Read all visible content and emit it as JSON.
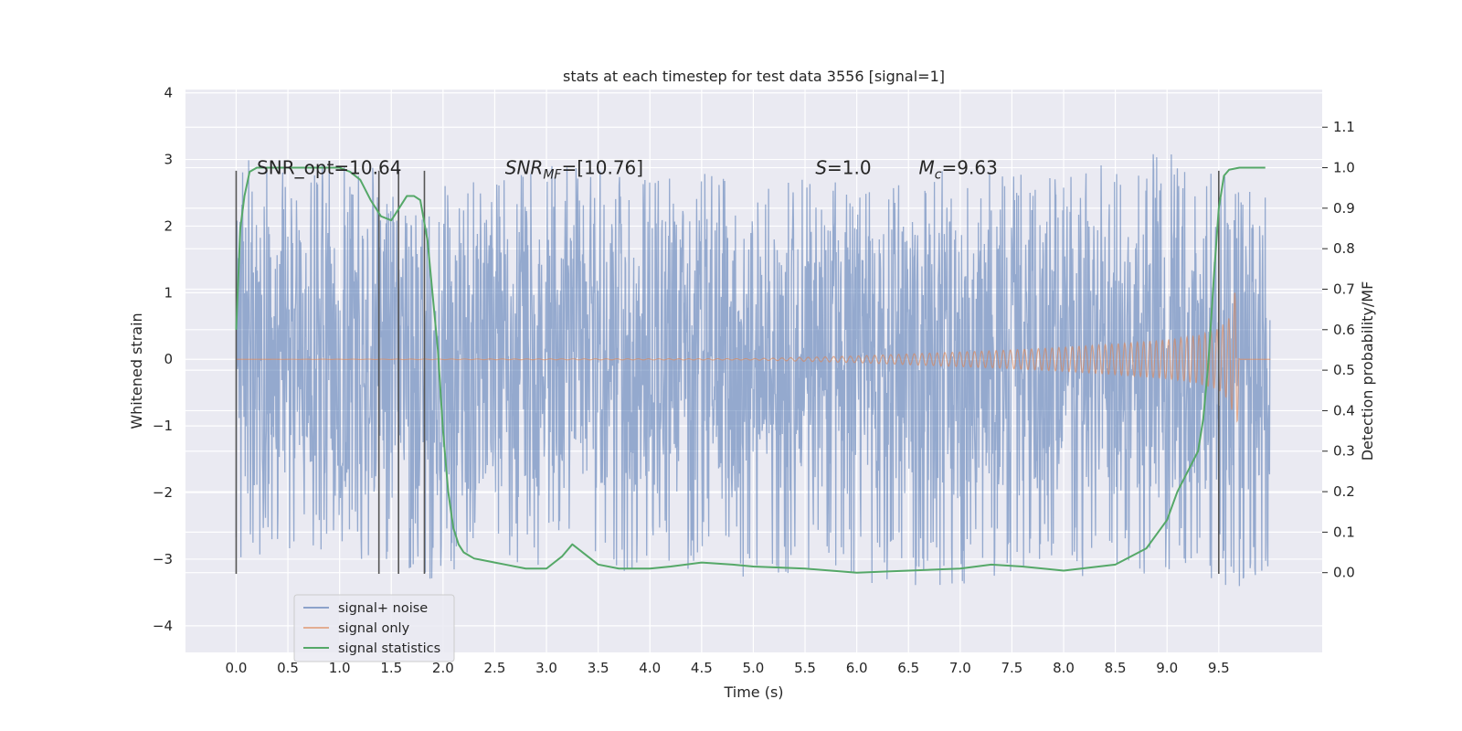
{
  "chart_data": {
    "type": "line",
    "title": "stats at each timestep for test data 3556 [signal=1]",
    "xlabel": "Time (s)",
    "ylabel": "Whitened strain",
    "y2label": "Detection probability/MF",
    "xlim": [
      -0.49,
      10.5
    ],
    "ylim": [
      -4.4,
      4.05
    ],
    "y2lim": [
      -0.197,
      1.193
    ],
    "x_ticks": [
      0.0,
      0.5,
      1.0,
      1.5,
      2.0,
      2.5,
      3.0,
      3.5,
      4.0,
      4.5,
      5.0,
      5.5,
      6.0,
      6.5,
      7.0,
      7.5,
      8.0,
      8.5,
      9.0,
      9.5
    ],
    "x_tick_labels": [
      "0.0",
      "0.5",
      "1.0",
      "1.5",
      "2.0",
      "2.5",
      "3.0",
      "3.5",
      "4.0",
      "4.5",
      "5.0",
      "5.5",
      "6.0",
      "6.5",
      "7.0",
      "7.5",
      "8.0",
      "8.5",
      "9.0",
      "9.5"
    ],
    "y_ticks": [
      -4,
      -3,
      -2,
      -1,
      0,
      1,
      2,
      3,
      4
    ],
    "y_tick_labels": [
      "−4",
      "−3",
      "−2",
      "−1",
      "0",
      "1",
      "2",
      "3",
      "4"
    ],
    "y2_ticks": [
      0.0,
      0.1,
      0.2,
      0.3,
      0.4,
      0.5,
      0.6,
      0.7,
      0.8,
      0.9,
      1.0,
      1.1
    ],
    "y2_tick_labels": [
      "0.0",
      "0.1",
      "0.2",
      "0.3",
      "0.4",
      "0.5",
      "0.6",
      "0.7",
      "0.8",
      "0.9",
      "1.0",
      "1.1"
    ],
    "grid": true,
    "legend_position": "lower-left",
    "annotations": [
      {
        "x": 0.2,
        "y": 2.85,
        "text": "SNR_opt=10.64"
      },
      {
        "x": 2.6,
        "y": 2.85,
        "text": "SNR_MF=[10.76]",
        "base": "SNR",
        "sub": "MF",
        "tail": "=[10.76]"
      },
      {
        "x": 5.6,
        "y": 2.85,
        "text": "S=1.0",
        "base": "S",
        "tail": "=1.0"
      },
      {
        "x": 6.6,
        "y": 2.85,
        "text": "M_c=9.63",
        "base": "M",
        "sub": "c",
        "tail": "=9.63"
      }
    ],
    "vertical_lines": {
      "x": [
        0.0,
        1.38,
        1.57,
        1.82,
        9.5
      ],
      "ymin": -3.22,
      "ymax": 2.83,
      "color": "#555555"
    },
    "series": [
      {
        "name": "signal+ noise",
        "color": "#4c72b0",
        "axis": "left",
        "x_range": [
          0.0,
          9.995
        ],
        "envelope": {
          "t": [
            0.0,
            0.5,
            1.0,
            1.5,
            2.0,
            2.5,
            3.0,
            3.5,
            4.0,
            4.5,
            5.0,
            5.5,
            6.0,
            6.5,
            7.0,
            7.5,
            8.0,
            8.5,
            9.0,
            9.5,
            10.0
          ],
          "upper": [
            3.0,
            3.0,
            2.9,
            2.9,
            2.6,
            2.7,
            2.9,
            2.9,
            2.7,
            2.8,
            2.7,
            2.8,
            2.8,
            2.8,
            2.9,
            2.8,
            2.7,
            3.0,
            3.2,
            2.9,
            2.4
          ],
          "lower": [
            -3.0,
            -3.0,
            -3.0,
            -3.0,
            -3.4,
            -3.1,
            -3.1,
            -3.2,
            -3.2,
            -3.2,
            -3.3,
            -3.2,
            -3.4,
            -3.4,
            -3.4,
            -3.2,
            -3.3,
            -3.3,
            -3.3,
            -3.4,
            -3.6
          ]
        }
      },
      {
        "name": "signal only",
        "color": "#dd8452",
        "axis": "left",
        "amplitude": {
          "t": [
            0.0,
            5.0,
            6.0,
            6.5,
            7.0,
            7.5,
            8.0,
            8.5,
            9.0,
            9.3,
            9.5,
            9.6,
            9.65,
            9.67,
            9.7,
            10.0
          ],
          "a": [
            0.0,
            0.01,
            0.05,
            0.08,
            0.11,
            0.14,
            0.18,
            0.23,
            0.29,
            0.36,
            0.46,
            0.62,
            0.9,
            1.4,
            0.0,
            0.0
          ]
        }
      },
      {
        "name": "signal statistics",
        "color": "#55a868",
        "axis": "right",
        "x": [
          0.0,
          0.04,
          0.08,
          0.13,
          0.2,
          0.3,
          0.5,
          0.8,
          1.0,
          1.1,
          1.2,
          1.3,
          1.4,
          1.5,
          1.55,
          1.6,
          1.65,
          1.72,
          1.78,
          1.85,
          1.95,
          2.0,
          2.05,
          2.1,
          2.15,
          2.2,
          2.3,
          2.4,
          2.5,
          2.6,
          2.8,
          3.0,
          3.15,
          3.25,
          3.35,
          3.5,
          3.7,
          4.0,
          4.2,
          4.5,
          4.8,
          5.0,
          5.5,
          6.0,
          6.5,
          7.0,
          7.3,
          7.6,
          8.0,
          8.5,
          8.8,
          9.0,
          9.1,
          9.2,
          9.3,
          9.35,
          9.4,
          9.45,
          9.5,
          9.55,
          9.6,
          9.7,
          9.8,
          9.95
        ],
        "y": [
          0.6,
          0.85,
          0.93,
          0.99,
          1.0,
          1.0,
          1.0,
          1.0,
          1.0,
          0.99,
          0.97,
          0.92,
          0.88,
          0.87,
          0.89,
          0.91,
          0.93,
          0.93,
          0.92,
          0.82,
          0.55,
          0.35,
          0.2,
          0.11,
          0.07,
          0.05,
          0.035,
          0.03,
          0.025,
          0.02,
          0.01,
          0.01,
          0.04,
          0.07,
          0.05,
          0.02,
          0.01,
          0.01,
          0.015,
          0.025,
          0.02,
          0.015,
          0.01,
          0.0,
          0.005,
          0.01,
          0.02,
          0.015,
          0.005,
          0.02,
          0.06,
          0.13,
          0.2,
          0.25,
          0.3,
          0.38,
          0.52,
          0.72,
          0.9,
          0.98,
          0.995,
          1.0,
          1.0,
          1.0
        ]
      }
    ]
  }
}
